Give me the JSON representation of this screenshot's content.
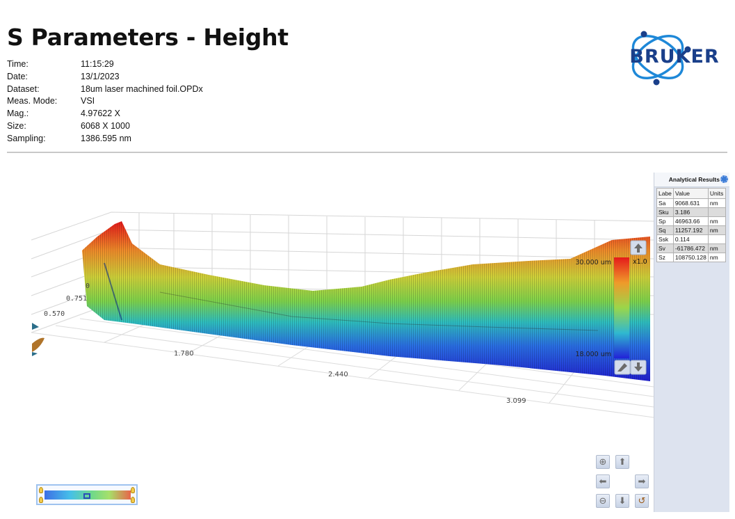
{
  "report": {
    "title": "S Parameters - Height"
  },
  "meta": [
    {
      "label": "Time:",
      "value": "11:15:29"
    },
    {
      "label": "Date:",
      "value": "13/1/2023"
    },
    {
      "label": "Dataset:",
      "value": "18um laser machined foil.OPDx"
    },
    {
      "label": "Meas. Mode:",
      "value": "VSI"
    },
    {
      "label": "Mag.:",
      "value": "4.97622 X"
    },
    {
      "label": "Size:",
      "value": "6068 X 1000"
    },
    {
      "label": "Sampling:",
      "value": "1386.595 nm"
    }
  ],
  "logo": {
    "text": "BRUKER",
    "color": "#1a3f8a",
    "ring_color": "#1e88d8"
  },
  "plot": {
    "axis_ticks_x": [
      "1.780",
      "2.440",
      "3.099"
    ],
    "axis_ticks_y": [
      "0.570",
      "0.751",
      "0"
    ],
    "colorbar_top": "30.000 um",
    "colorbar_bottom": "18.000 um",
    "zoom_factor": "x1.0",
    "colormap": [
      "#e51a1a",
      "#f07a2a",
      "#d9d23a",
      "#8fd64a",
      "#2fc6b0",
      "#2a7ae4",
      "#2323d8"
    ]
  },
  "results": {
    "title": "Analytical Results",
    "columns": [
      "Labe",
      "Value",
      "Units"
    ],
    "rows": [
      {
        "label": "Sa",
        "value": "9068.631",
        "units": "nm"
      },
      {
        "label": "Sku",
        "value": "3.186",
        "units": ""
      },
      {
        "label": "Sp",
        "value": "46963.66",
        "units": "nm"
      },
      {
        "label": "Sq",
        "value": "11257.192",
        "units": "nm"
      },
      {
        "label": "Ssk",
        "value": "0.114",
        "units": ""
      },
      {
        "label": "Sv",
        "value": "-61786.472",
        "units": "nm"
      },
      {
        "label": "Sz",
        "value": "108750.128",
        "units": "nm"
      }
    ]
  },
  "nav": {
    "zoom_in": "⊕",
    "up": "⬆",
    "left": "⬅",
    "right": "➡",
    "zoom_out": "⊖",
    "down": "⬇",
    "reset": "↺"
  }
}
